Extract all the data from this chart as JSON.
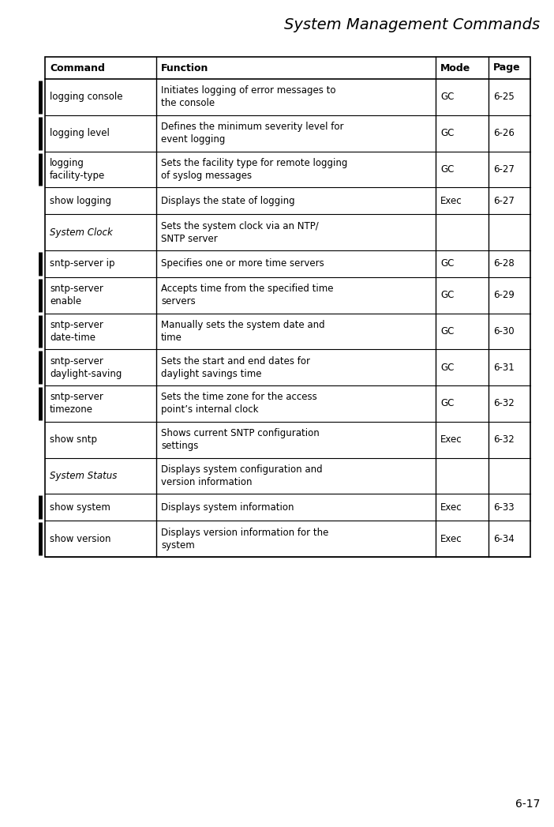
{
  "title": "System Management Commands",
  "page_number": "6-17",
  "columns": [
    "Command",
    "Function",
    "Mode",
    "Page"
  ],
  "rows": [
    {
      "command": "logging console",
      "function": "Initiates logging of error messages to\nthe console",
      "mode": "GC",
      "page": "6-25",
      "italic": false,
      "has_bar": true,
      "mode_empty": false
    },
    {
      "command": "logging level",
      "function": "Defines the minimum severity level for\nevent logging",
      "mode": "GC",
      "page": "6-26",
      "italic": false,
      "has_bar": true,
      "mode_empty": false
    },
    {
      "command": "logging\nfacility-type",
      "function": "Sets the facility type for remote logging\nof syslog messages",
      "mode": "GC",
      "page": "6-27",
      "italic": false,
      "has_bar": true,
      "mode_empty": false
    },
    {
      "command": "show logging",
      "function": "Displays the state of logging",
      "mode": "Exec",
      "page": "6-27",
      "italic": false,
      "has_bar": false,
      "mode_empty": false
    },
    {
      "command": "System Clock",
      "function": "Sets the system clock via an NTP/\nSNTP server",
      "mode": "",
      "page": "",
      "italic": true,
      "has_bar": false,
      "mode_empty": true
    },
    {
      "command": "sntp-server ip",
      "function": "Specifies one or more time servers",
      "mode": "GC",
      "page": "6-28",
      "italic": false,
      "has_bar": true,
      "mode_empty": false
    },
    {
      "command": "sntp-server\nenable",
      "function": "Accepts time from the specified time\nservers",
      "mode": "GC",
      "page": "6-29",
      "italic": false,
      "has_bar": true,
      "mode_empty": false
    },
    {
      "command": "sntp-server\ndate-time",
      "function": "Manually sets the system date and\ntime",
      "mode": "GC",
      "page": "6-30",
      "italic": false,
      "has_bar": true,
      "mode_empty": false
    },
    {
      "command": "sntp-server\ndaylight-saving",
      "function": "Sets the start and end dates for\ndaylight savings time",
      "mode": "GC",
      "page": "6-31",
      "italic": false,
      "has_bar": true,
      "mode_empty": false
    },
    {
      "command": "sntp-server\ntimezone",
      "function": "Sets the time zone for the access\npoint’s internal clock",
      "mode": "GC",
      "page": "6-32",
      "italic": false,
      "has_bar": true,
      "mode_empty": false
    },
    {
      "command": "show sntp",
      "function": "Shows current SNTP configuration\nsettings",
      "mode": "Exec",
      "page": "6-32",
      "italic": false,
      "has_bar": false,
      "mode_empty": false
    },
    {
      "command": "System Status",
      "function": "Displays system configuration and\nversion information",
      "mode": "",
      "page": "",
      "italic": true,
      "has_bar": false,
      "mode_empty": true
    },
    {
      "command": "show system",
      "function": "Displays system information",
      "mode": "Exec",
      "page": "6-33",
      "italic": false,
      "has_bar": true,
      "mode_empty": false
    },
    {
      "command": "show version",
      "function": "Displays version information for the\nsystem",
      "mode": "Exec",
      "page": "6-34",
      "italic": false,
      "has_bar": true,
      "mode_empty": false
    }
  ],
  "bg_color": "#ffffff",
  "border_color": "#000000",
  "bar_color": "#000000",
  "title_fontsize": 14,
  "header_fontsize": 9,
  "cell_fontsize": 8.5
}
